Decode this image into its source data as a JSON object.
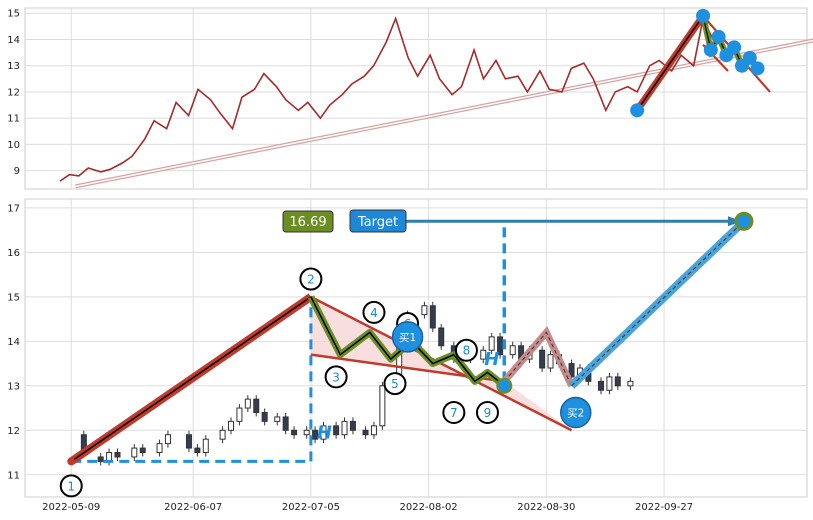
{
  "chart_data": [
    {
      "panel": "top",
      "type": "line",
      "xlim": [
        "2022-04-28",
        "2022-10-31"
      ],
      "ylim": [
        8.3,
        15.2
      ],
      "y_ticks": [
        9,
        10,
        11,
        12,
        13,
        14,
        15
      ],
      "grid": true,
      "price_series": [
        {
          "x": "2022-05-10",
          "y": 8.6
        },
        {
          "x": "2022-05-13",
          "y": 8.85
        },
        {
          "x": "2022-05-16",
          "y": 8.8
        },
        {
          "x": "2022-05-19",
          "y": 9.1
        },
        {
          "x": "2022-05-23",
          "y": 8.95
        },
        {
          "x": "2022-05-26",
          "y": 9.05
        },
        {
          "x": "2022-05-30",
          "y": 9.3
        },
        {
          "x": "2022-06-02",
          "y": 9.55
        },
        {
          "x": "2022-06-06",
          "y": 10.2
        },
        {
          "x": "2022-06-09",
          "y": 10.9
        },
        {
          "x": "2022-06-13",
          "y": 10.6
        },
        {
          "x": "2022-06-16",
          "y": 11.6
        },
        {
          "x": "2022-06-20",
          "y": 11.1
        },
        {
          "x": "2022-06-23",
          "y": 12.1
        },
        {
          "x": "2022-06-27",
          "y": 11.7
        },
        {
          "x": "2022-06-30",
          "y": 11.2
        },
        {
          "x": "2022-07-04",
          "y": 10.6
        },
        {
          "x": "2022-07-07",
          "y": 11.8
        },
        {
          "x": "2022-07-11",
          "y": 12.1
        },
        {
          "x": "2022-07-14",
          "y": 12.7
        },
        {
          "x": "2022-07-18",
          "y": 12.2
        },
        {
          "x": "2022-07-21",
          "y": 11.7
        },
        {
          "x": "2022-07-25",
          "y": 11.3
        },
        {
          "x": "2022-07-28",
          "y": 11.6
        },
        {
          "x": "2022-08-01",
          "y": 11.0
        },
        {
          "x": "2022-08-04",
          "y": 11.5
        },
        {
          "x": "2022-08-08",
          "y": 11.9
        },
        {
          "x": "2022-08-11",
          "y": 12.3
        },
        {
          "x": "2022-08-15",
          "y": 12.6
        },
        {
          "x": "2022-08-18",
          "y": 13.0
        },
        {
          "x": "2022-08-22",
          "y": 13.9
        },
        {
          "x": "2022-08-25",
          "y": 14.8
        },
        {
          "x": "2022-08-29",
          "y": 13.3
        },
        {
          "x": "2022-09-01",
          "y": 12.6
        },
        {
          "x": "2022-09-05",
          "y": 13.4
        },
        {
          "x": "2022-09-08",
          "y": 12.5
        },
        {
          "x": "2022-09-12",
          "y": 11.9
        },
        {
          "x": "2022-09-15",
          "y": 12.2
        },
        {
          "x": "2022-09-19",
          "y": 13.6
        },
        {
          "x": "2022-09-22",
          "y": 12.5
        },
        {
          "x": "2022-09-26",
          "y": 13.2
        },
        {
          "x": "2022-09-29",
          "y": 12.5
        },
        {
          "x": "2022-10-03",
          "y": 12.6
        },
        {
          "x": "2022-10-06",
          "y": 12.0
        },
        {
          "x": "2022-10-10",
          "y": 12.8
        },
        {
          "x": "2022-10-13",
          "y": 12.1
        },
        {
          "x": "2022-10-17",
          "y": 12.0
        },
        {
          "x": "2022-10-20",
          "y": 12.9
        },
        {
          "x": "2022-10-24",
          "y": 13.1
        },
        {
          "x": "2022-10-27",
          "y": 12.5
        },
        {
          "x": "2022-10-31",
          "y": 11.3
        },
        {
          "x": "2022-11-03",
          "y": 12.0
        },
        {
          "x": "2022-11-07",
          "y": 12.2
        },
        {
          "x": "2022-11-10",
          "y": 12.0
        },
        {
          "x": "2022-11-14",
          "y": 13.0
        },
        {
          "x": "2022-11-17",
          "y": 13.2
        },
        {
          "x": "2022-11-21",
          "y": 12.8
        },
        {
          "x": "2022-11-24",
          "y": 13.4
        },
        {
          "x": "2022-11-28",
          "y": 13.0
        },
        {
          "x": "2022-12-01",
          "y": 14.8
        },
        {
          "x": "2022-12-05",
          "y": 13.8
        },
        {
          "x": "2022-12-08",
          "y": 14.1
        }
      ],
      "trend_arrow": {
        "from": {
          "x": "2022-05-10",
          "y": 8.4
        },
        "to": {
          "x": "2022-12-01",
          "y": 14.9
        }
      },
      "wave_start": {
        "x": "2022-11-10",
        "y": 11.3
      },
      "wave_peak": {
        "x": "2022-12-01",
        "y": 14.9
      },
      "wave_points": [
        {
          "y": 14.9
        },
        {
          "y": 13.6
        },
        {
          "y": 14.1
        },
        {
          "y": 13.4
        },
        {
          "y": 13.7
        },
        {
          "y": 13.0
        },
        {
          "y": 13.3
        },
        {
          "y": 12.9
        }
      ],
      "upper_line": [
        {
          "y": 14.9
        },
        {
          "y": 12.0
        }
      ],
      "lower_line": [
        {
          "y": 13.8
        },
        {
          "y": 12.8
        }
      ],
      "colors": {
        "price": "#a52a2a",
        "impulse": "#c0392b",
        "wave": "#6b8e23",
        "marker": "#1f8fe0",
        "arrow": "#d9a0a0"
      }
    },
    {
      "panel": "bottom",
      "type": "candlestick",
      "xlim": [
        "2022-04-28",
        "2022-10-31"
      ],
      "ylim": [
        10.5,
        17.2
      ],
      "x_ticks": [
        "2022-05-09",
        "2022-06-07",
        "2022-07-05",
        "2022-08-02",
        "2022-08-30",
        "2022-09-27"
      ],
      "y_ticks": [
        11,
        12,
        13,
        14,
        15,
        16,
        17
      ],
      "grid": true,
      "candles": [
        {
          "x": "2022-05-12",
          "o": 11.9,
          "c": 11.5
        },
        {
          "x": "2022-05-16",
          "o": 11.4,
          "c": 11.3
        },
        {
          "x": "2022-05-18",
          "o": 11.3,
          "c": 11.5
        },
        {
          "x": "2022-05-20",
          "o": 11.5,
          "c": 11.4
        },
        {
          "x": "2022-05-24",
          "o": 11.4,
          "c": 11.6
        },
        {
          "x": "2022-05-26",
          "o": 11.6,
          "c": 11.5
        },
        {
          "x": "2022-05-30",
          "o": 11.5,
          "c": 11.7
        },
        {
          "x": "2022-06-01",
          "o": 11.7,
          "c": 11.9
        },
        {
          "x": "2022-06-06",
          "o": 11.9,
          "c": 11.6
        },
        {
          "x": "2022-06-08",
          "o": 11.6,
          "c": 11.5
        },
        {
          "x": "2022-06-10",
          "o": 11.5,
          "c": 11.8
        },
        {
          "x": "2022-06-14",
          "o": 11.8,
          "c": 12.0
        },
        {
          "x": "2022-06-16",
          "o": 12.0,
          "c": 12.2
        },
        {
          "x": "2022-06-18",
          "o": 12.2,
          "c": 12.5
        },
        {
          "x": "2022-06-20",
          "o": 12.5,
          "c": 12.7
        },
        {
          "x": "2022-06-22",
          "o": 12.7,
          "c": 12.4
        },
        {
          "x": "2022-06-24",
          "o": 12.4,
          "c": 12.2
        },
        {
          "x": "2022-06-27",
          "o": 12.2,
          "c": 12.3
        },
        {
          "x": "2022-06-29",
          "o": 12.3,
          "c": 12.0
        },
        {
          "x": "2022-07-01",
          "o": 12.0,
          "c": 11.9
        },
        {
          "x": "2022-07-04",
          "o": 11.9,
          "c": 12.0
        },
        {
          "x": "2022-07-06",
          "o": 12.0,
          "c": 11.8
        },
        {
          "x": "2022-07-08",
          "o": 11.8,
          "c": 12.1
        },
        {
          "x": "2022-07-11",
          "o": 12.1,
          "c": 11.9
        },
        {
          "x": "2022-07-13",
          "o": 11.9,
          "c": 12.2
        },
        {
          "x": "2022-07-15",
          "o": 12.2,
          "c": 12.0
        },
        {
          "x": "2022-07-18",
          "o": 12.0,
          "c": 11.9
        },
        {
          "x": "2022-07-20",
          "o": 11.9,
          "c": 12.1
        },
        {
          "x": "2022-07-22",
          "o": 12.1,
          "c": 13.0
        },
        {
          "x": "2022-07-26",
          "o": 13.0,
          "c": 13.9
        },
        {
          "x": "2022-07-28",
          "o": 13.9,
          "c": 14.6
        },
        {
          "x": "2022-08-01",
          "o": 14.6,
          "c": 14.8
        },
        {
          "x": "2022-08-03",
          "o": 14.8,
          "c": 14.3
        },
        {
          "x": "2022-08-05",
          "o": 14.3,
          "c": 13.9
        },
        {
          "x": "2022-08-08",
          "o": 13.9,
          "c": 13.6
        },
        {
          "x": "2022-08-10",
          "o": 13.6,
          "c": 13.8
        },
        {
          "x": "2022-08-12",
          "o": 13.8,
          "c": 13.6
        },
        {
          "x": "2022-08-15",
          "o": 13.6,
          "c": 13.8
        },
        {
          "x": "2022-08-17",
          "o": 13.8,
          "c": 14.1
        },
        {
          "x": "2022-08-19",
          "o": 14.1,
          "c": 13.7
        },
        {
          "x": "2022-08-22",
          "o": 13.7,
          "c": 13.9
        },
        {
          "x": "2022-08-24",
          "o": 13.9,
          "c": 13.6
        },
        {
          "x": "2022-08-26",
          "o": 13.6,
          "c": 13.8
        },
        {
          "x": "2022-08-29",
          "o": 13.8,
          "c": 13.4
        },
        {
          "x": "2022-08-31",
          "o": 13.4,
          "c": 13.7
        },
        {
          "x": "2022-09-02",
          "o": 13.7,
          "c": 13.5
        },
        {
          "x": "2022-09-05",
          "o": 13.5,
          "c": 13.2
        },
        {
          "x": "2022-09-07",
          "o": 13.2,
          "c": 13.4
        },
        {
          "x": "2022-09-09",
          "o": 13.4,
          "c": 13.1
        },
        {
          "x": "2022-09-12",
          "o": 13.1,
          "c": 12.9
        },
        {
          "x": "2022-09-14",
          "o": 12.9,
          "c": 13.2
        },
        {
          "x": "2022-09-16",
          "o": 13.2,
          "c": 13.0
        },
        {
          "x": "2022-09-19",
          "o": 13.0,
          "c": 13.1
        }
      ],
      "impulse_line": [
        {
          "x": "2022-05-09",
          "y": 11.3
        },
        {
          "x": "2022-07-05",
          "y": 15.0
        }
      ],
      "wave_path": [
        {
          "x": "2022-07-05",
          "y": 15.0
        },
        {
          "x": "2022-07-12",
          "y": 13.7
        },
        {
          "x": "2022-07-19",
          "y": 14.2
        },
        {
          "x": "2022-07-24",
          "y": 13.6
        },
        {
          "x": "2022-07-29",
          "y": 14.0
        },
        {
          "x": "2022-08-03",
          "y": 13.5
        },
        {
          "x": "2022-08-08",
          "y": 13.7
        },
        {
          "x": "2022-08-13",
          "y": 13.1
        },
        {
          "x": "2022-08-16",
          "y": 13.3
        },
        {
          "x": "2022-08-20",
          "y": 13.0
        }
      ],
      "upper_trendline": [
        {
          "x": "2022-07-05",
          "y": 15.0
        },
        {
          "x": "2022-09-05",
          "y": 12.0
        }
      ],
      "lower_trendline": [
        {
          "x": "2022-07-05",
          "y": 13.7
        },
        {
          "x": "2022-08-20",
          "y": 13.1
        }
      ],
      "projection_up": [
        {
          "x": "2022-08-20",
          "y": 13.1
        },
        {
          "x": "2022-08-30",
          "y": 14.2
        },
        {
          "x": "2022-09-05",
          "y": 13.0
        }
      ],
      "projection_target": [
        {
          "x": "2022-09-05",
          "y": 13.0
        },
        {
          "x": "2022-10-16",
          "y": 16.7
        }
      ],
      "base_line": {
        "y": 11.3,
        "x_from": "2022-05-09",
        "x_to": "2022-07-05"
      },
      "h_measure_1": {
        "x": "2022-07-05",
        "y_from": 11.3,
        "y_to": 15.0,
        "label": "H"
      },
      "h_measure_2": {
        "x": "2022-08-20",
        "y_from": 13.1,
        "y_to": 16.7,
        "label": "H"
      },
      "target_arrow": {
        "x_from": "2022-07-26",
        "x_to": "2022-10-16",
        "y": 16.7
      },
      "target_value_label": "16.69",
      "target_label": "Target",
      "numbered_points": [
        {
          "label": "1",
          "x": "2022-05-09",
          "y": 10.75
        },
        {
          "label": "2",
          "x": "2022-07-05",
          "y": 15.4
        },
        {
          "label": "3",
          "x": "2022-07-11",
          "y": 13.2
        },
        {
          "label": "4",
          "x": "2022-07-20",
          "y": 14.65
        },
        {
          "label": "5",
          "x": "2022-07-25",
          "y": 13.05
        },
        {
          "label": "6",
          "x": "2022-07-28",
          "y": 14.4
        },
        {
          "label": "7",
          "x": "2022-08-08",
          "y": 12.4
        },
        {
          "label": "8",
          "x": "2022-08-11",
          "y": 13.8
        },
        {
          "label": "9",
          "x": "2022-08-16",
          "y": 12.4
        }
      ],
      "buy_points": [
        {
          "label": "买1",
          "x": "2022-07-28",
          "y": 14.1
        },
        {
          "label": "买2",
          "x": "2022-09-06",
          "y": 12.4
        }
      ],
      "colors": {
        "impulse": "#c0392b",
        "wave": "#6b8e23",
        "marker": "#1f8fe0",
        "target_box": "#1e88d8",
        "value_box": "#6b8e23",
        "projection_down": "#c58a8a",
        "projection_up": "#4aa3d9",
        "measure": "#1f8fe0",
        "fill": "#f6d6d6"
      }
    }
  ]
}
